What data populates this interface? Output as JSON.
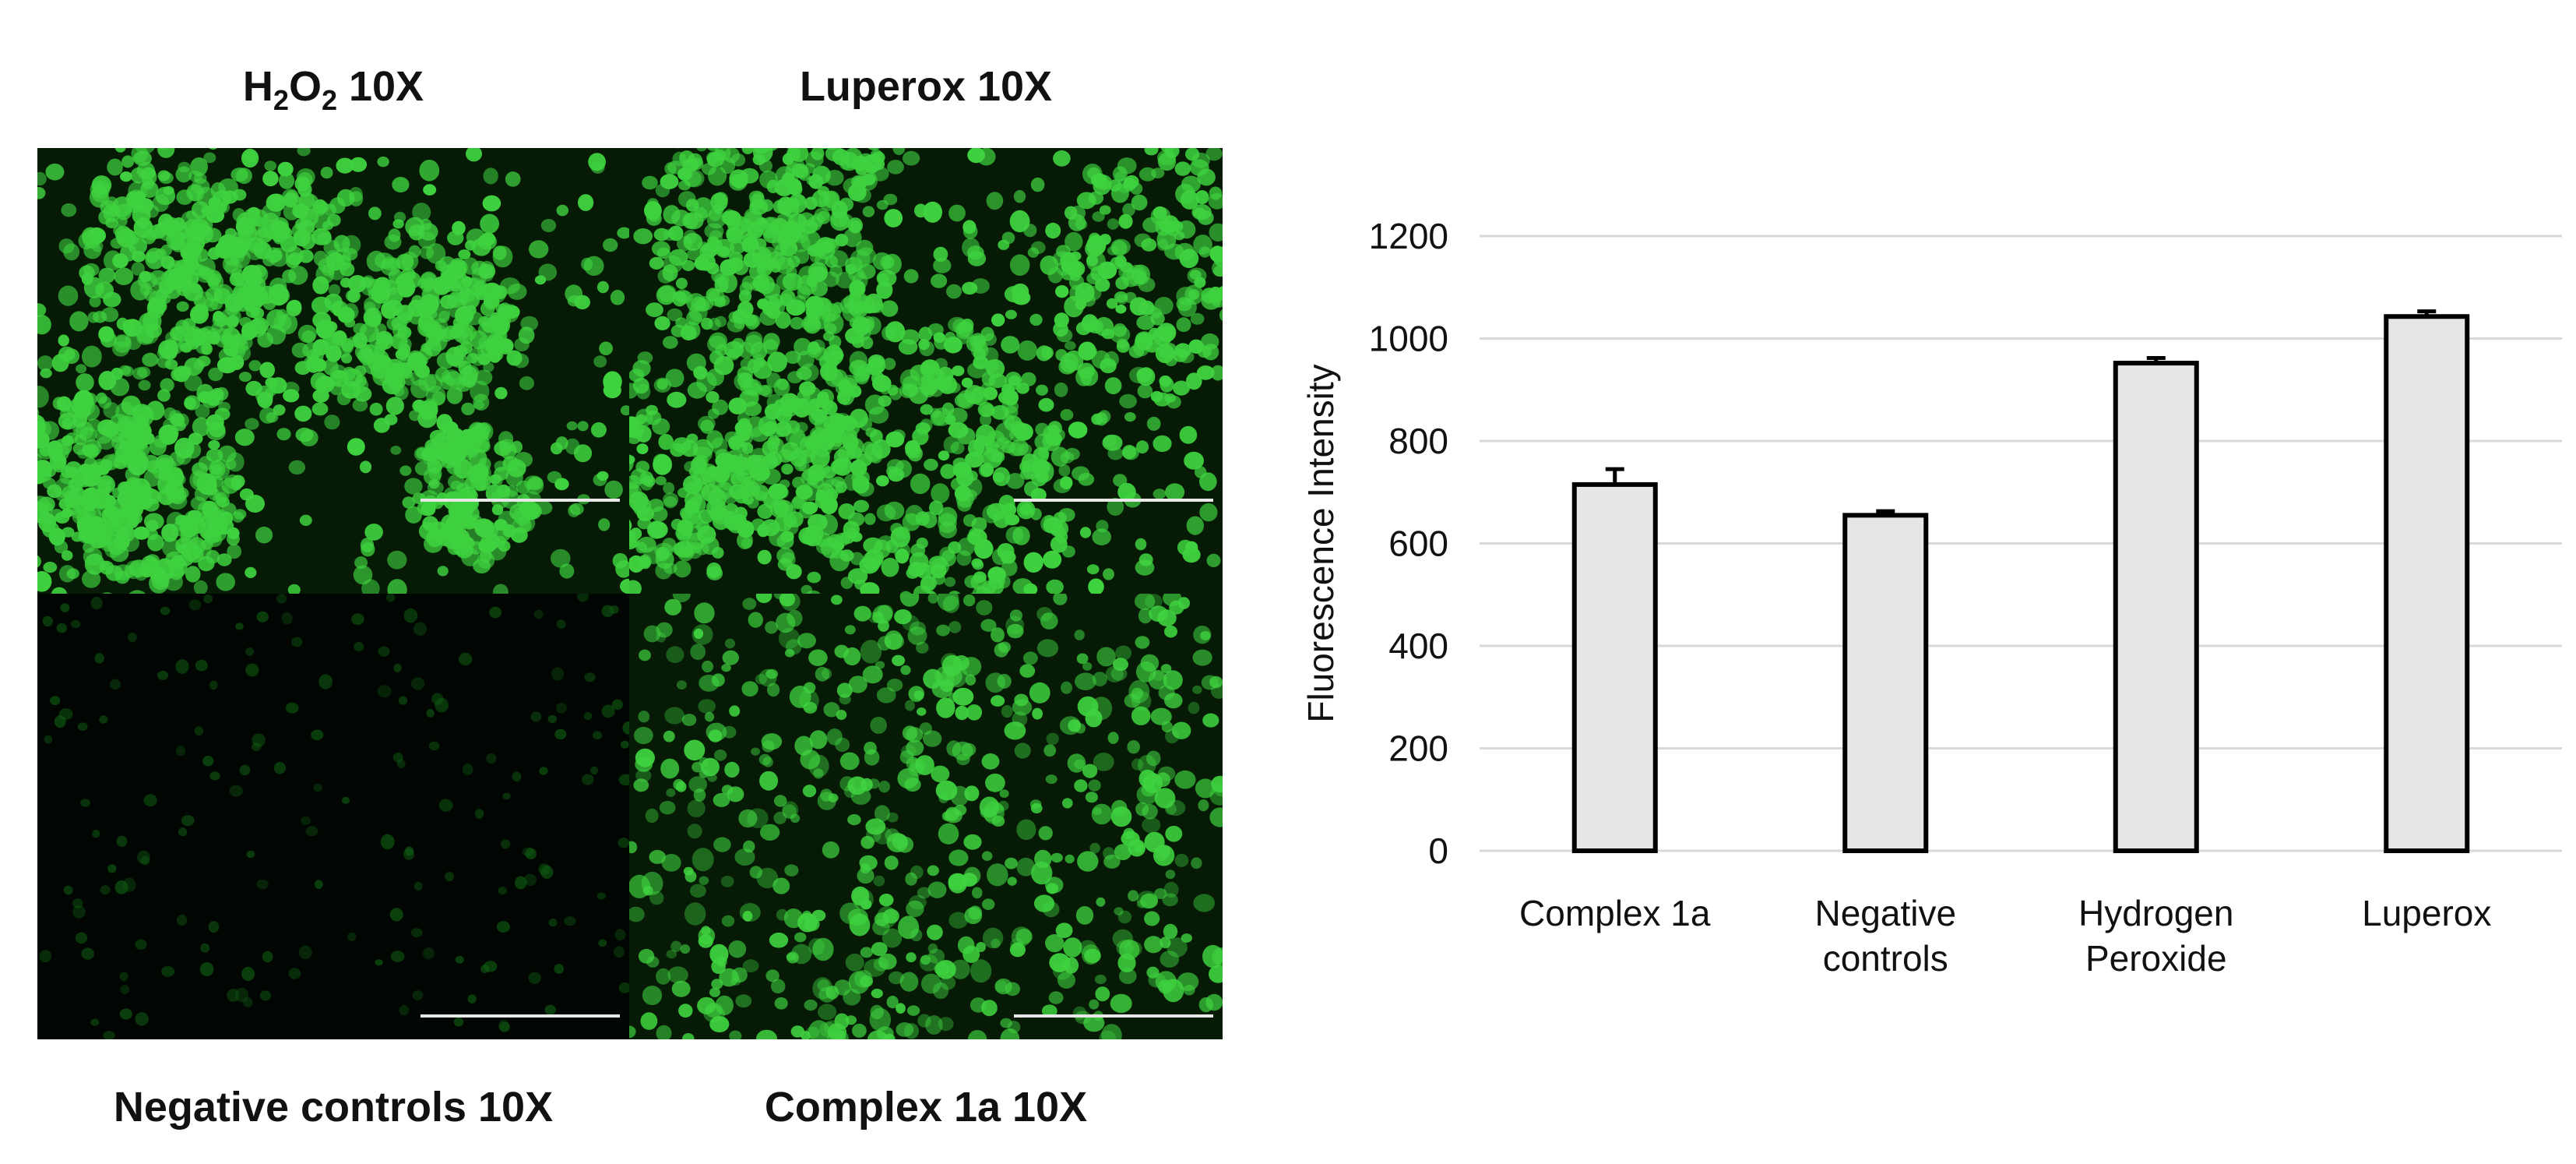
{
  "panels": {
    "top_left": {
      "title_main": "H",
      "sub1": "2",
      "mid": "O",
      "sub2": "2",
      "suffix": " 10X",
      "brightness": "high"
    },
    "top_right": {
      "title": "Luperox 10X",
      "brightness": "high"
    },
    "bottom_left": {
      "title": "Negative controls 10X",
      "brightness": "low"
    },
    "bottom_right": {
      "title": "Complex 1a 10X",
      "brightness": "medium"
    }
  },
  "colors": {
    "cell_bright": "#3fd23f",
    "cell_dim": "#0f5a12",
    "background_dark": "#061a06",
    "scale_bar": "#e8e8e8",
    "bar_fill": "#e6e6e6",
    "bar_stroke": "#000000",
    "grid": "#d9d9d9"
  },
  "chart_data": {
    "type": "bar",
    "categories": [
      [
        "Complex 1a"
      ],
      [
        "Negative",
        "controls"
      ],
      [
        "Hydrogen",
        "Peroxide"
      ],
      [
        "Luperox"
      ]
    ],
    "values": [
      715,
      655,
      952,
      1043
    ],
    "errors": [
      30,
      8,
      10,
      10
    ],
    "xlabel": "",
    "ylabel": "Fluorescence Intensity",
    "ylim": [
      0,
      1200
    ],
    "yticks": [
      0,
      200,
      400,
      600,
      800,
      1000,
      1200
    ],
    "grid": true,
    "legend": "none"
  }
}
